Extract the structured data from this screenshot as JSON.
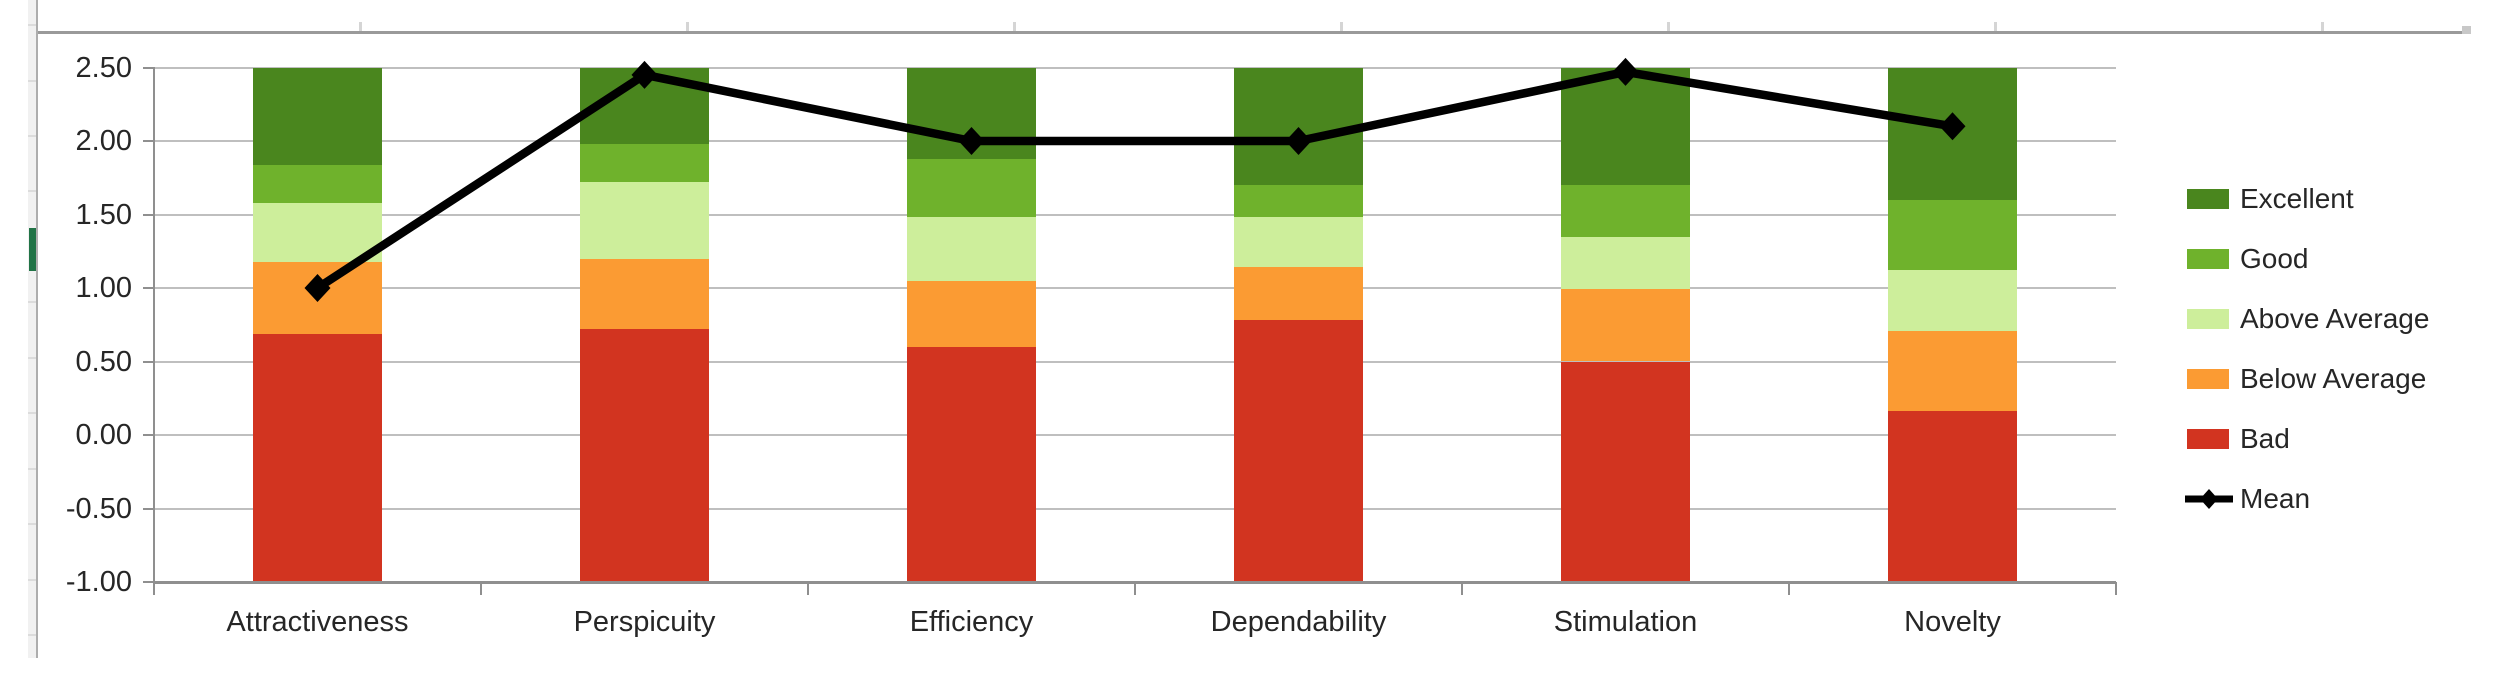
{
  "app": {
    "context": "spreadsheet-embedded-chart",
    "selection_marker_color": "#217346"
  },
  "chart_data": {
    "type": "bar",
    "subtype": "stacked-benchmark-bars-with-mean-line",
    "title": "",
    "categories": [
      "Attractiveness",
      "Perspicuity",
      "Efficiency",
      "Dependability",
      "Stimulation",
      "Novelty"
    ],
    "ylim": [
      -1.0,
      2.5
    ],
    "ytick_step": 0.5,
    "ytick_labels": [
      "2.50",
      "2.00",
      "1.50",
      "1.00",
      "0.50",
      "0.00",
      "-0.50",
      "-1.00"
    ],
    "grid": true,
    "legend_position": "right",
    "series": [
      {
        "name": "Bad",
        "color": "#D23420",
        "base": -1.0,
        "segment_top_values": [
          0.69,
          0.72,
          0.6,
          0.78,
          0.5,
          0.16
        ]
      },
      {
        "name": "Below Average",
        "color": "#FB9B33",
        "segment_top_values": [
          1.18,
          1.2,
          1.05,
          1.14,
          0.99,
          0.71
        ]
      },
      {
        "name": "Above Average",
        "color": "#CDEE9B",
        "segment_top_values": [
          1.58,
          1.72,
          1.48,
          1.48,
          1.35,
          1.12
        ]
      },
      {
        "name": "Good",
        "color": "#6FB22C",
        "segment_top_values": [
          1.84,
          1.98,
          1.88,
          1.7,
          1.7,
          1.6
        ]
      },
      {
        "name": "Excellent",
        "color": "#4A861E",
        "segment_top_values": [
          2.5,
          2.5,
          2.5,
          2.5,
          2.5,
          2.5
        ]
      }
    ],
    "line_series": {
      "name": "Mean",
      "color": "#000000",
      "marker": "diamond",
      "values": [
        1.0,
        2.45,
        2.0,
        2.0,
        2.47,
        2.1
      ]
    },
    "legend_items": [
      {
        "label": "Excellent",
        "swatch": "#4A861E",
        "kind": "box"
      },
      {
        "label": "Good",
        "swatch": "#6FB22C",
        "kind": "box"
      },
      {
        "label": "Above Average",
        "swatch": "#CDEE9B",
        "kind": "box"
      },
      {
        "label": "Below Average",
        "swatch": "#FB9B33",
        "kind": "box"
      },
      {
        "label": "Bad",
        "swatch": "#D23420",
        "kind": "box"
      },
      {
        "label": "Mean",
        "swatch": "#000000",
        "kind": "line-diamond"
      }
    ],
    "colors": {
      "gridline": "#bfbfbf",
      "axis": "#8f8f8f",
      "mean_line": "#000000"
    }
  }
}
